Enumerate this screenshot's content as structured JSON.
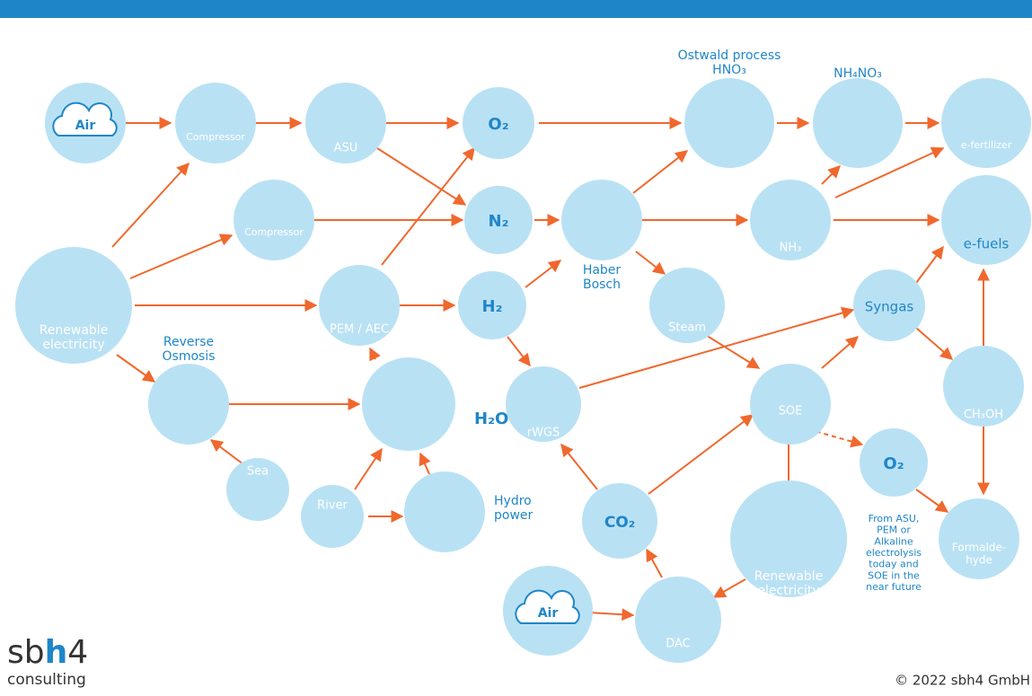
{
  "nodes": [
    {
      "lines": [
        "Air"
      ]
    },
    {
      "lines": [
        "Compressor"
      ]
    },
    {
      "lines": [
        "ASU"
      ]
    },
    {
      "lines": [
        "O₂"
      ]
    },
    {
      "lines": [
        "Ostwald process",
        "HNO₃"
      ]
    },
    {
      "lines": [
        "NH₄NO₃"
      ]
    },
    {
      "lines": [
        "e-fertilizer"
      ]
    },
    {
      "lines": [
        "Compressor"
      ]
    },
    {
      "lines": [
        "N₂"
      ]
    },
    {
      "lines": [
        "Haber",
        "Bosch"
      ]
    },
    {
      "lines": [
        "NH₃"
      ]
    },
    {
      "lines": [
        "e-fuels"
      ]
    },
    {
      "lines": [
        "Renewable",
        "electricity"
      ]
    },
    {
      "lines": [
        "PEM / AEC"
      ]
    },
    {
      "lines": [
        "H₂"
      ]
    },
    {
      "lines": [
        "Steam"
      ]
    },
    {
      "lines": [
        "Syngas"
      ]
    },
    {
      "lines": [
        "Reverse",
        "Osmosis"
      ]
    },
    {
      "lines": [
        "H₂O"
      ]
    },
    {
      "lines": [
        "rWGS"
      ]
    },
    {
      "lines": [
        "SOE"
      ]
    },
    {
      "lines": [
        "CH₃OH"
      ]
    },
    {
      "lines": [
        "Sea"
      ]
    },
    {
      "lines": [
        "River"
      ]
    },
    {
      "lines": [
        "Hydro",
        "power"
      ]
    },
    {
      "lines": [
        "CO₂"
      ]
    },
    {
      "lines": [
        "O₂"
      ]
    },
    {
      "lines": [
        "From ASU,",
        "PEM or",
        "Alkaline",
        "electrolysis",
        "today and",
        "SOE in the",
        "near future"
      ]
    },
    {
      "lines": [
        "Formalde-",
        "hyde"
      ]
    },
    {
      "lines": [
        "Renewable",
        "electricity"
      ]
    },
    {
      "lines": [
        "Air"
      ]
    },
    {
      "lines": [
        "DAC"
      ]
    }
  ],
  "logo": {
    "parts": [
      "sb",
      "h",
      "4"
    ],
    "sub": "consulting"
  },
  "copyright": "© 2022 sbh4 GmbH"
}
